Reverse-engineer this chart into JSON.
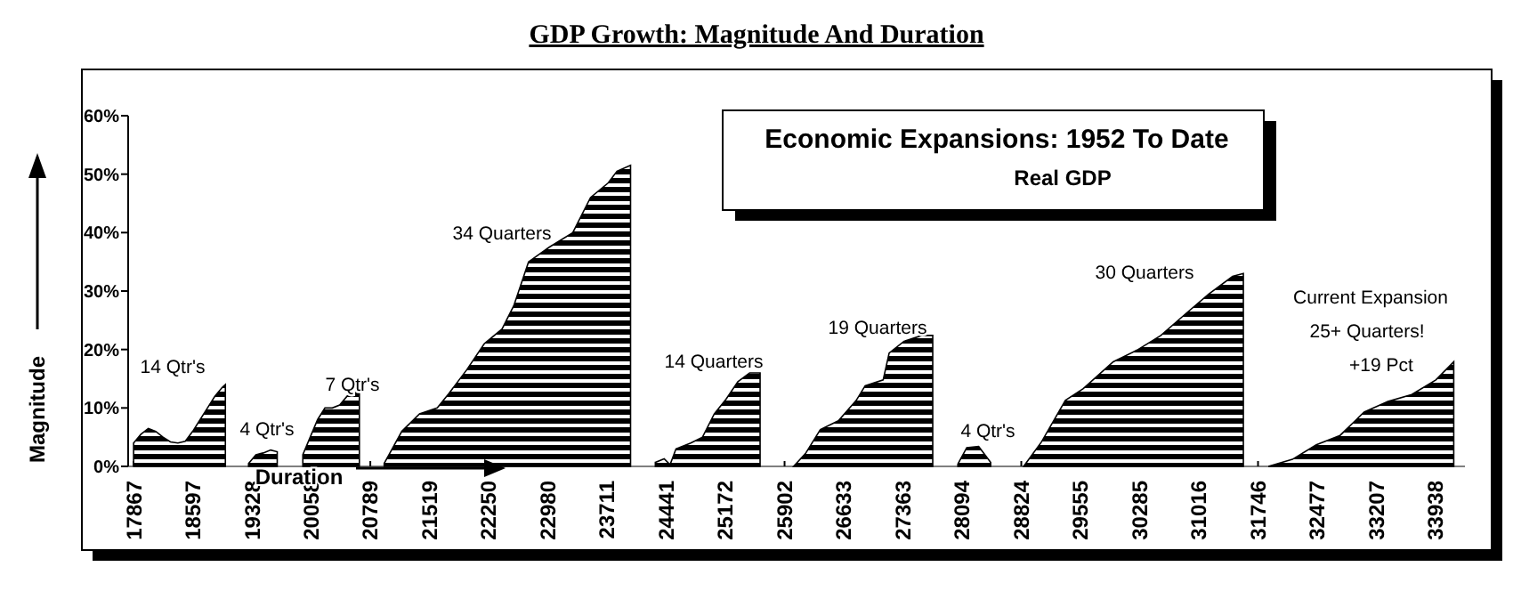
{
  "chart_data": {
    "type": "area",
    "title": "GDP Growth: Magnitude And Duration",
    "subtitle": "Economic Expansions: 1952 To Date",
    "xlabel": "Duration",
    "ylabel": "Magnitude",
    "annotations": [
      "Real GDP",
      "14 Qtr's",
      "4 Qtr's",
      "7 Qtr's",
      "34 Quarters",
      "14 Quarters",
      "19 Quarters",
      "4 Qtr's",
      "30 Quarters",
      "Current Expansion",
      "25+ Quarters!",
      "+19 Pct"
    ],
    "series": [
      {
        "color": "#000000",
        "x": [
          17867,
          17958,
          18049,
          18140,
          18230,
          18322,
          18414,
          18505,
          18597,
          18688,
          18779,
          18870,
          18961,
          19000
        ],
        "values": [
          4,
          5.5,
          6.5,
          6,
          5,
          4.2,
          4,
          4.3,
          6,
          8,
          10,
          12,
          13.5,
          14
        ]
      },
      {
        "color": "#000000",
        "x": [
          19286,
          19377,
          19468,
          19559,
          19640
        ],
        "values": [
          0.5,
          2,
          2.3,
          2.8,
          2.5
        ]
      },
      {
        "color": "#000000",
        "x": [
          19956,
          20047,
          20138,
          20229,
          20320,
          20411,
          20502,
          20593,
          20654
        ],
        "values": [
          2,
          5,
          8,
          10,
          10,
          10.5,
          12,
          13,
          13
        ]
      },
      {
        "color": "#000000",
        "x": [
          20960,
          21178,
          21397,
          21615,
          21760,
          21978,
          22197,
          22415,
          22560,
          22742,
          22997,
          23288,
          23507,
          23725,
          23834,
          24001
        ],
        "values": [
          0.5,
          6,
          9,
          10,
          12.5,
          16.5,
          21,
          23.5,
          27.5,
          35,
          37.5,
          40,
          46,
          48.5,
          50.5,
          51.5
        ]
      },
      {
        "color": "#000000",
        "x": [
          24307,
          24416,
          24489,
          24562,
          24744,
          24889,
          25035,
          25180,
          25326,
          25471,
          25600
        ],
        "values": [
          0.7,
          1.3,
          0.3,
          3,
          4,
          5,
          9,
          11.5,
          14.5,
          16,
          16
        ]
      },
      {
        "color": "#000000",
        "x": [
          26013,
          26160,
          26344,
          26566,
          26787,
          26897,
          27119,
          27193,
          27377,
          27598,
          27731
        ],
        "values": [
          0,
          2.2,
          6.3,
          7.8,
          11.3,
          13.8,
          14.8,
          19.4,
          21.4,
          22.4,
          22.4
        ]
      },
      {
        "color": "#000000",
        "x": [
          28041,
          28151,
          28298,
          28446
        ],
        "values": [
          0.4,
          3.2,
          3.4,
          0.7
        ]
      },
      {
        "color": "#000000",
        "x": [
          28853,
          29074,
          29368,
          29589,
          29959,
          30253,
          30547,
          30844,
          31138,
          31432,
          31565
        ],
        "values": [
          0,
          4.2,
          11.3,
          13.3,
          17.9,
          19.9,
          22.4,
          26,
          29.5,
          32.5,
          33
        ]
      },
      {
        "color": "#000000",
        "x": [
          31874,
          32171,
          32465,
          32759,
          33056,
          33350,
          33644,
          33941,
          34162
        ],
        "values": [
          0,
          1.2,
          3.7,
          5.3,
          9.3,
          11.1,
          12.3,
          14.8,
          17.9
        ]
      }
    ],
    "xlim": [
      17800,
      34300
    ],
    "xticks": [
      17867,
      18597,
      19328,
      20058,
      20789,
      21519,
      22250,
      22980,
      23711,
      24441,
      25172,
      25902,
      26633,
      27363,
      28094,
      28824,
      29555,
      30285,
      31016,
      31746,
      32477,
      33207,
      33938
    ],
    "ylim": [
      0,
      60
    ],
    "yticks": [
      {
        "value": 0,
        "label": "0%"
      },
      {
        "value": 10,
        "label": "10%"
      },
      {
        "value": 20,
        "label": "20%"
      },
      {
        "value": 30,
        "label": "30%"
      },
      {
        "value": 40,
        "label": "40%"
      },
      {
        "value": 50,
        "label": "50%"
      },
      {
        "value": 60,
        "label": "60%"
      }
    ],
    "grid": false
  }
}
